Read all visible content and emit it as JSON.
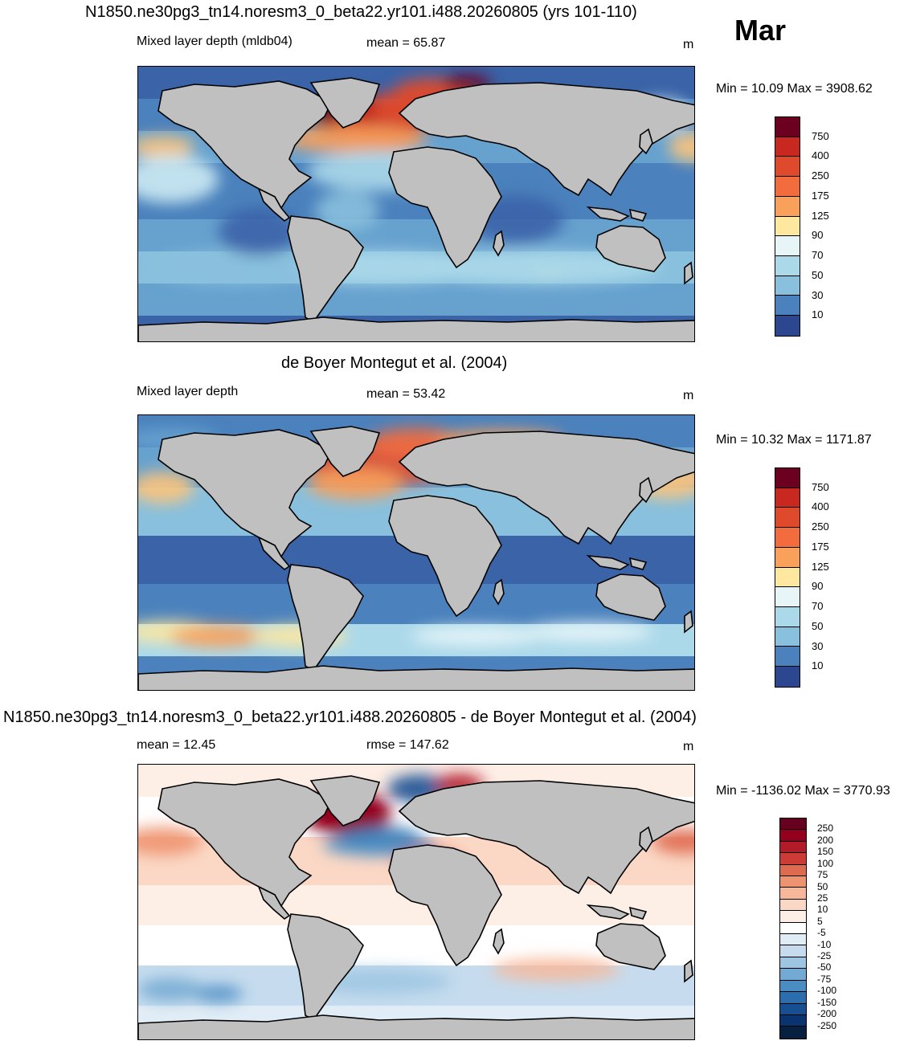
{
  "month": "Mar",
  "units": "m",
  "panels": [
    {
      "title": "N1850.ne30pg3_tn14.noresm3_0_beta22.yr101.i488.20260805 (yrs 101-110)",
      "left_label": "Mixed layer depth (mldb04)",
      "center_label": "mean =  65.87",
      "right_label": "m",
      "minmax": "Min =  10.09 Max = 3908.62",
      "colorbar_labels": [
        "750",
        "400",
        "250",
        "175",
        "125",
        "90",
        "70",
        "50",
        "30",
        "10"
      ]
    },
    {
      "title": "de Boyer Montegut et al. (2004)",
      "left_label": "Mixed layer depth",
      "center_label": "mean =  53.42",
      "right_label": "m",
      "minmax": "Min =  10.32 Max = 1171.87",
      "colorbar_labels": [
        "750",
        "400",
        "250",
        "175",
        "125",
        "90",
        "70",
        "50",
        "30",
        "10"
      ]
    },
    {
      "title": "N1850.ne30pg3_tn14.noresm3_0_beta22.yr101.i488.20260805 - de Boyer Montegut et al. (2004)",
      "left_label": "mean =  12.45",
      "center_label": "rmse = 147.62",
      "right_label": "m",
      "minmax": "Min = -1136.02 Max = 3770.93",
      "colorbar_labels": [
        "250",
        "200",
        "150",
        "100",
        "75",
        "50",
        "25",
        "10",
        "5",
        "-5",
        "-10",
        "-25",
        "-50",
        "-75",
        "-100",
        "-150",
        "-200",
        "-250"
      ]
    }
  ],
  "colors": {
    "land": "#c0c0c0",
    "mld_scale": [
      "#6b0020",
      "#a1122b",
      "#c8281f",
      "#e04a2c",
      "#f26c3e",
      "#f9a05a",
      "#fdc47b",
      "#fee8a0",
      "#fdf9d0",
      "#e8f5f8",
      "#cdebf3",
      "#acd9ea",
      "#89c0dd",
      "#67a2cf",
      "#4b82bd",
      "#3a63a8",
      "#2c4690",
      "#292c6e"
    ],
    "diff_scale": [
      "#67001f",
      "#93001d",
      "#b31b29",
      "#cc3b35",
      "#de6a50",
      "#ee9370",
      "#f7b89a",
      "#fbd8c5",
      "#fdeee6",
      "#ffffff",
      "#e1edf6",
      "#c6dcee",
      "#9ec6e2",
      "#73aad3",
      "#4a8dc3",
      "#2b6ead",
      "#174f92",
      "#0a3470",
      "#08203f"
    ]
  }
}
